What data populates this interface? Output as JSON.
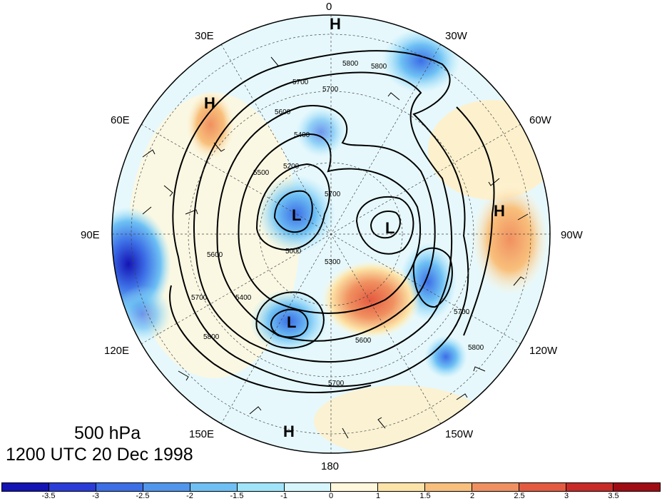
{
  "caption": {
    "level": "500 hPa",
    "time": "1200 UTC 20 Dec 1998"
  },
  "longitude_labels": [
    "0",
    "30W",
    "60W",
    "90W",
    "120W",
    "150W",
    "180",
    "150E",
    "120E",
    "90E",
    "60E",
    "30E"
  ],
  "pressure_centers": [
    {
      "label": "H",
      "lon": "0",
      "desc": "high near 0"
    },
    {
      "label": "H",
      "lon": "45E"
    },
    {
      "label": "H",
      "lon": "90W"
    },
    {
      "label": "H",
      "lon": "170E"
    },
    {
      "label": "L",
      "lon": "70E"
    },
    {
      "label": "L",
      "lon": "110W"
    },
    {
      "label": "L",
      "lon": "150E"
    }
  ],
  "contour_labels": [
    "5800",
    "5800",
    "5700",
    "5700",
    "5600",
    "5400",
    "5200",
    "5500",
    "5600",
    "5700",
    "5000",
    "5300",
    "5400",
    "5700",
    "5800",
    "5600",
    "5700",
    "5700",
    "5800"
  ],
  "colorbar": {
    "colors": [
      "#1414b4",
      "#2a3cd8",
      "#3c6ee6",
      "#5096ec",
      "#6ec0f4",
      "#a0e4fa",
      "#d4f6fc",
      "#fff8dc",
      "#fce4a8",
      "#f8c07c",
      "#f09060",
      "#e45a40",
      "#c82a28",
      "#a00c14"
    ],
    "tick_labels": [
      "-3.5",
      "-3",
      "-2.5",
      "-2",
      "-1.5",
      "-1",
      "0",
      "1",
      "1.5",
      "2",
      "2.5",
      "3",
      "3.5"
    ]
  }
}
